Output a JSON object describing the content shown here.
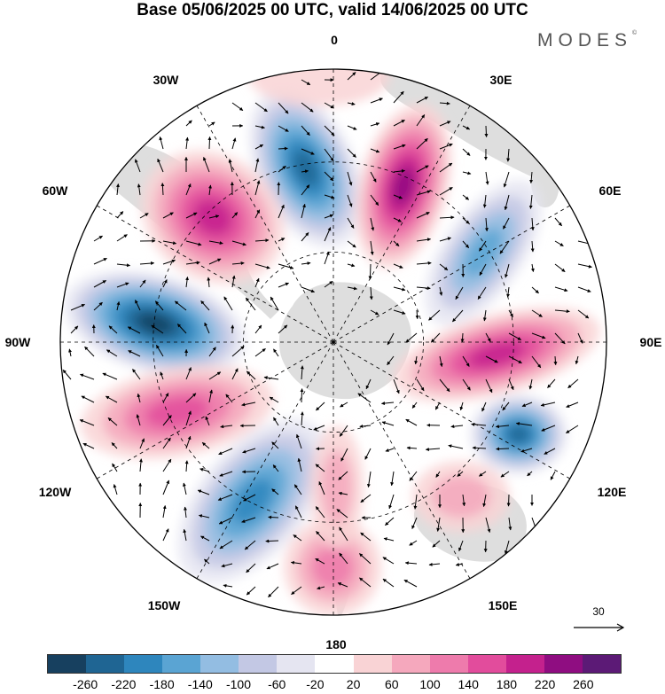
{
  "title": "Base 05/06/2025 00 UTC, valid 14/06/2025 00 UTC",
  "brand": "MODES",
  "brand_mark": "©",
  "longitude_labels": {
    "top": "0",
    "upper_right": "30E",
    "right_upper": "60E",
    "right": "90E",
    "right_lower": "120E",
    "lower_right": "150E",
    "bottom": "180",
    "lower_left": "150W",
    "left_lower": "120W",
    "left": "90W",
    "left_upper": "60W",
    "upper_left": "30W"
  },
  "vector_scale": {
    "value": "30"
  },
  "colorbar": {
    "colors": [
      "#17405f",
      "#1f6593",
      "#2e86bd",
      "#5aa4d3",
      "#93bde2",
      "#c3c8e4",
      "#e5e5f1",
      "#ffffff",
      "#f9d3d5",
      "#f5a8bd",
      "#ee7bac",
      "#e24c9c",
      "#c4218d",
      "#8f0d81",
      "#5c1a76"
    ],
    "labels": [
      "-260",
      "-220",
      "-180",
      "-140",
      "-100",
      "-60",
      "-20",
      "20",
      "60",
      "100",
      "140",
      "180",
      "220",
      "260"
    ]
  },
  "colors": {
    "land": "#dedede",
    "background": "#ffffff"
  }
}
